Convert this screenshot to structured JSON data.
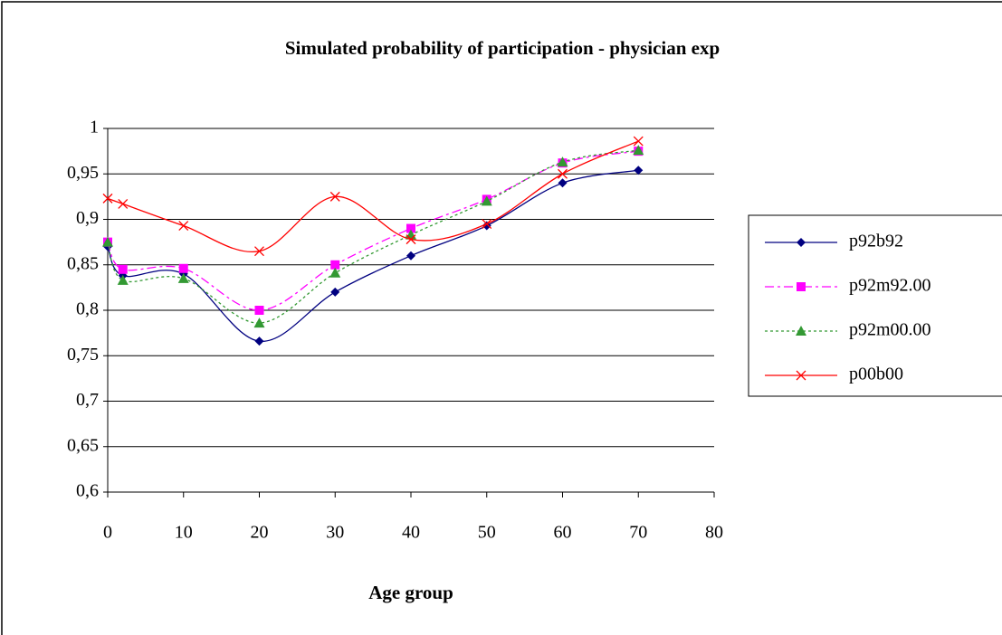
{
  "chart_data": {
    "type": "line",
    "title": "Simulated probability of participation - physician exp",
    "x_label": "Age group",
    "x": [
      0,
      2,
      10,
      20,
      30,
      40,
      50,
      60,
      70
    ],
    "xlim": [
      0,
      80
    ],
    "xticks": [
      0,
      10,
      20,
      30,
      40,
      50,
      60,
      70,
      80
    ],
    "ylim": [
      0.6,
      1
    ],
    "yticks": [
      {
        "value": 0.6,
        "label": "0,6"
      },
      {
        "value": 0.65,
        "label": "0,65"
      },
      {
        "value": 0.7,
        "label": "0,7"
      },
      {
        "value": 0.75,
        "label": "0,75"
      },
      {
        "value": 0.8,
        "label": "0,8"
      },
      {
        "value": 0.85,
        "label": "0,85"
      },
      {
        "value": 0.9,
        "label": "0,9"
      },
      {
        "value": 0.95,
        "label": "0,95"
      },
      {
        "value": 1,
        "label": "1"
      }
    ],
    "grid": true,
    "legend": "right",
    "series": [
      {
        "name": "p92b92",
        "color": "#000080",
        "marker": "diamond",
        "dash": "solid",
        "values": [
          0.87,
          0.838,
          0.84,
          0.766,
          0.82,
          0.86,
          0.893,
          0.94,
          0.954
        ]
      },
      {
        "name": "p92m92.00",
        "color": "#ff00ff",
        "marker": "square",
        "dash": "dashdot",
        "values": [
          0.875,
          0.845,
          0.846,
          0.8,
          0.85,
          0.89,
          0.922,
          0.962,
          0.975
        ]
      },
      {
        "name": "p92m00.00",
        "color": "#339933",
        "marker": "triangle",
        "dash": "dotted",
        "values": [
          0.875,
          0.833,
          0.835,
          0.786,
          0.841,
          0.883,
          0.92,
          0.963,
          0.976
        ]
      },
      {
        "name": "p00b00",
        "color": "#ff0000",
        "marker": "x",
        "dash": "solid",
        "values": [
          0.923,
          0.917,
          0.893,
          0.865,
          0.925,
          0.878,
          0.895,
          0.95,
          0.986
        ]
      }
    ]
  }
}
